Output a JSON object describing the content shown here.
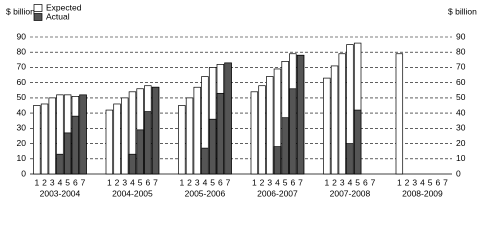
{
  "chart_data": {
    "type": "grouped-bar",
    "y_label": "$ billion",
    "groups": [
      "2003-2004",
      "2004-2005",
      "2005-2006",
      "2006-2007",
      "2007-2008",
      "2008-2009"
    ],
    "categories": [
      "1",
      "2",
      "3",
      "4",
      "5",
      "6",
      "7"
    ],
    "series": [
      {
        "name": "Expected",
        "color": "#ffffff",
        "values": [
          [
            45,
            46,
            50,
            52,
            52,
            51,
            52
          ],
          [
            42,
            46,
            50,
            54,
            56,
            58,
            57
          ],
          [
            45,
            50,
            57,
            64,
            70,
            72,
            73
          ],
          [
            54,
            58,
            64,
            69,
            74,
            79,
            78
          ],
          [
            63,
            71,
            79,
            85,
            86,
            null,
            null
          ],
          [
            79,
            null,
            null,
            null,
            null,
            null,
            null
          ]
        ]
      },
      {
        "name": "Actual",
        "color": "#555555",
        "values": [
          [
            null,
            null,
            null,
            13,
            27,
            38,
            52
          ],
          [
            null,
            null,
            null,
            13,
            29,
            41,
            57
          ],
          [
            null,
            null,
            null,
            17,
            36,
            53,
            73
          ],
          [
            null,
            null,
            null,
            18,
            37,
            56,
            78
          ],
          [
            null,
            null,
            null,
            20,
            42,
            null,
            null
          ],
          [
            null,
            null,
            null,
            null,
            null,
            null,
            null
          ]
        ]
      }
    ],
    "ylim": [
      0,
      90
    ],
    "yticks": [
      0,
      10,
      20,
      30,
      40,
      50,
      60,
      70,
      80,
      90
    ],
    "grid": true
  }
}
